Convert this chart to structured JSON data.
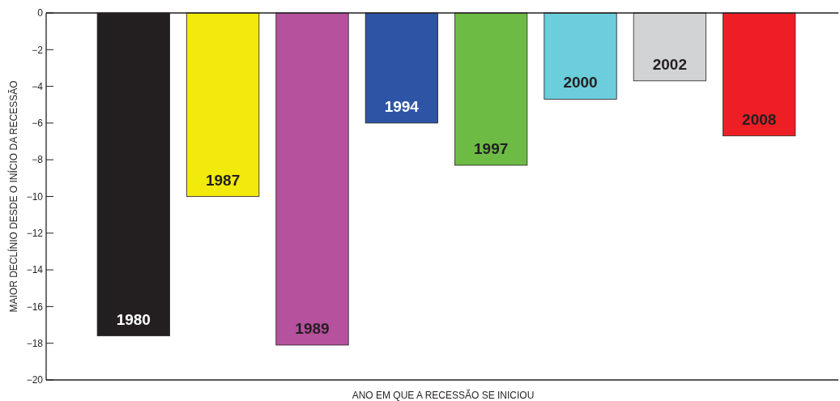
{
  "chart_data": {
    "type": "bar",
    "xlabel": "ANO EM QUE A RECESSÃO SE INICIOU",
    "ylabel": "MAIOR DECLÍNIO DESDE O INÍCIO DA RECESSÃO",
    "categories": [
      "1980",
      "1987",
      "1989",
      "1994",
      "1997",
      "2000",
      "2002",
      "2008"
    ],
    "values": [
      -17.6,
      -10.0,
      -18.1,
      -6.0,
      -8.3,
      -4.7,
      -3.7,
      -6.7
    ],
    "colors": [
      "#231f20",
      "#f2ea0a",
      "#b6519e",
      "#2e55a5",
      "#6dbb45",
      "#6ccddc",
      "#d2d3d5",
      "#ed1f24"
    ],
    "ylim": [
      -20,
      0
    ],
    "yticks": [
      0,
      -2,
      -4,
      -6,
      -8,
      -10,
      -12,
      -14,
      -16,
      -18,
      -20
    ],
    "grid": false
  }
}
